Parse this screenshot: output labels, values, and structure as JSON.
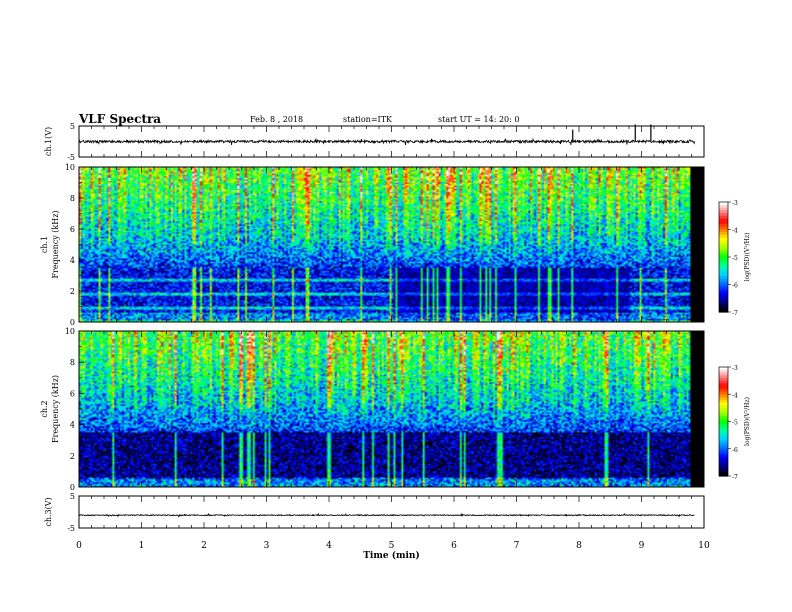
{
  "header": {
    "title": "VLF Spectra",
    "date": "Feb. 8 , 2018",
    "station": "station=ITK",
    "start": "start UT =  14: 20: 0"
  },
  "colors": {
    "colormap": [
      "#000000",
      "#00008c",
      "#0000ff",
      "#0070ff",
      "#00d0ff",
      "#00ffa0",
      "#00ff00",
      "#a8ff00",
      "#ffff00",
      "#ff8000",
      "#ff0000",
      "#ff8080",
      "#ffffff"
    ]
  },
  "chart_data": [
    {
      "type": "line",
      "panel": "ch1-waveform",
      "ylabel": "ch.1(V)",
      "ylim": [
        -5,
        5
      ],
      "yticks": [
        "5",
        "-5"
      ],
      "xlim": [
        0,
        10
      ],
      "baseline": 0,
      "noise_amplitude": 0.4,
      "spikes": [
        {
          "x": 7.9,
          "y": 3.8
        },
        {
          "x": 8.9,
          "y": 5.5
        },
        {
          "x": 9.15,
          "y": 5.5
        }
      ]
    },
    {
      "type": "heatmap",
      "panel": "ch1-spectrogram",
      "ylabel": "ch.1\nFrequency (kHz)",
      "ylim": [
        0,
        10
      ],
      "yticks": [
        "0",
        "2",
        "4",
        "6",
        "8",
        "10"
      ],
      "xlim": [
        0,
        10
      ],
      "data_end_min": 9.8,
      "colorbar": {
        "label": "log(PSD)(V²/Hz)",
        "range": [
          -7,
          -3
        ],
        "ticks": [
          "-3",
          "-4",
          "-5",
          "-6",
          "-7"
        ]
      }
    },
    {
      "type": "heatmap",
      "panel": "ch2-spectrogram",
      "ylabel": "ch.2\nFrequency (kHz)",
      "ylim": [
        0,
        10
      ],
      "yticks": [
        "0",
        "2",
        "4",
        "6",
        "8",
        "10"
      ],
      "xlim": [
        0,
        10
      ],
      "data_end_min": 9.8,
      "colorbar": {
        "label": "log(PSD)(V²/Hz)",
        "range": [
          -7,
          -3
        ],
        "ticks": [
          "-3",
          "-4",
          "-5",
          "-6",
          "-7"
        ]
      }
    },
    {
      "type": "line",
      "panel": "ch3-waveform",
      "ylabel": "ch.3(V)",
      "ylim": [
        -5,
        5
      ],
      "yticks": [
        "5",
        "-5"
      ],
      "xlim": [
        0,
        10
      ],
      "baseline": -1.0,
      "noise_amplitude": 0.15
    }
  ],
  "xaxis": {
    "label": "Time (min)",
    "ticks": [
      "0",
      "1",
      "2",
      "3",
      "4",
      "5",
      "6",
      "7",
      "8",
      "9",
      "10"
    ]
  }
}
